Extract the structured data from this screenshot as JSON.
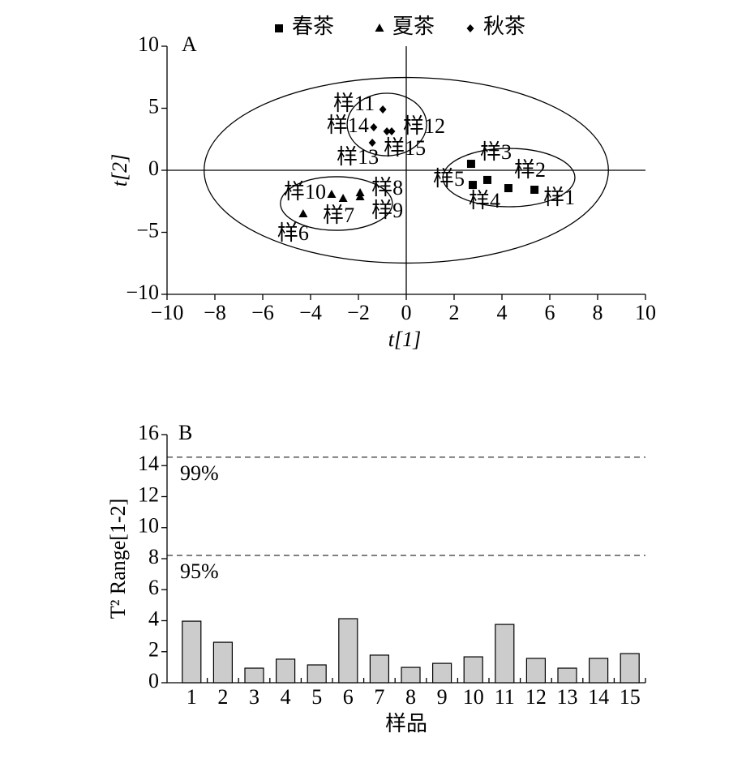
{
  "chart_data": [
    {
      "type": "scatter",
      "panel_label": "A",
      "xlabel": "t[1]",
      "ylabel": "t[2]",
      "xlim": [
        -10,
        10
      ],
      "xticks": [
        {
          "value": -10,
          "label": "−10"
        },
        {
          "value": -8,
          "label": "−8"
        },
        {
          "value": -6,
          "label": "−6"
        },
        {
          "value": -4,
          "label": "−4"
        },
        {
          "value": -2,
          "label": "−2"
        },
        0,
        2,
        4,
        6,
        8,
        10
      ],
      "ylim": [
        -10,
        10
      ],
      "yticks": [
        {
          "value": -10,
          "label": "−10"
        },
        {
          "value": -5,
          "label": "−5"
        },
        0,
        5,
        10
      ],
      "hlines": [
        0
      ],
      "vlines": [
        0
      ],
      "ellipses": [
        {
          "cx": 0,
          "cy": 0,
          "rx": 8.45,
          "ry": 7.48
        },
        {
          "cx": 4.29,
          "cy": -0.59,
          "rx": 2.76,
          "ry": 2.35
        },
        {
          "cx": -2.92,
          "cy": -2.68,
          "rx": 2.34,
          "ry": 2.16
        },
        {
          "cx": -0.81,
          "cy": 3.69,
          "rx": 1.66,
          "ry": 2.52
        }
      ],
      "series": [
        {
          "name": "春茶",
          "marker": "square",
          "color": "#000000",
          "x": [
            5.36,
            4.27,
            2.71,
            3.39,
            2.78
          ],
          "values": [
            -1.57,
            -1.44,
            0.52,
            -0.78,
            -1.18
          ],
          "labels": [
            "样1",
            "样2",
            "样3",
            "样4",
            "样5"
          ]
        },
        {
          "name": "夏茶",
          "marker": "triangle",
          "color": "#000000",
          "x": [
            -4.31,
            -2.64,
            -1.93,
            -1.93,
            -3.12
          ],
          "values": [
            -3.53,
            -2.29,
            -1.83,
            -2.16,
            -1.96
          ],
          "labels": [
            "样6",
            "样7",
            "样8",
            "样9",
            "样10"
          ]
        },
        {
          "name": "秋茶",
          "marker": "diamond",
          "color": "#000000",
          "x": [
            -0.98,
            -0.61,
            -1.42,
            -1.36,
            -0.81
          ],
          "values": [
            4.9,
            3.14,
            2.22,
            3.46,
            3.14
          ],
          "labels": [
            "样11",
            "样12",
            "样13",
            "样14",
            "样15"
          ]
        }
      ]
    },
    {
      "type": "bar",
      "panel_label": "B",
      "xlabel": "样品",
      "ylabel": "T² Range[1-2]",
      "categories": [
        "1",
        "2",
        "3",
        "4",
        "5",
        "6",
        "7",
        "8",
        "9",
        "10",
        "11",
        "12",
        "13",
        "14",
        "15"
      ],
      "values": [
        3.97,
        2.61,
        0.94,
        1.52,
        1.15,
        4.13,
        1.78,
        0.99,
        1.25,
        1.67,
        3.76,
        1.57,
        0.94,
        1.57,
        1.88
      ],
      "color": "#cccccc",
      "ylim": [
        0,
        16
      ],
      "yticks": [
        0,
        2,
        4,
        6,
        8,
        10,
        12,
        14,
        16
      ],
      "hlines": [
        {
          "value": 14.54,
          "label": "99%"
        },
        {
          "value": 8.21,
          "label": "95%"
        }
      ]
    }
  ]
}
